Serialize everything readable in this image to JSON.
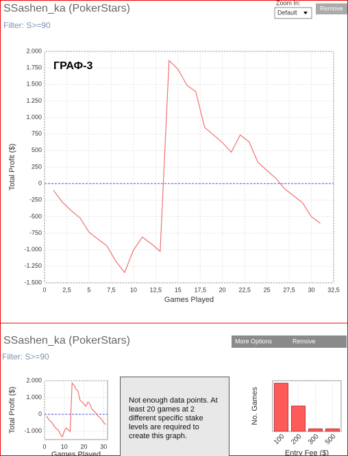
{
  "panel1": {
    "title": "SSashen_ka (PokerStars)",
    "filter": "Filter: S>=90",
    "zoom_label": "Zoom In:",
    "zoom_value": "Default",
    "remove": "Remove"
  },
  "panel2": {
    "title": "SSashen_ka (PokerStars)",
    "filter": "Filter: S>=90",
    "more_options": "More Options",
    "remove": "Remove",
    "message": "Not enough data points. At least 20 games at 2 different specific stake levels are required to create this graph."
  },
  "chart_data": [
    {
      "type": "line",
      "annotation": "ГРАФ-3",
      "xlabel": "Games Played",
      "ylabel": "Total Profit ($)",
      "x": [
        1,
        2,
        3,
        4,
        5,
        6,
        7,
        8,
        9,
        10,
        11,
        12,
        13,
        14,
        15,
        16,
        17,
        18,
        19,
        20,
        21,
        22,
        23,
        24,
        25,
        26,
        27,
        28,
        29,
        30,
        31
      ],
      "series": [
        {
          "color": "#f07070",
          "values": [
            -100,
            -280,
            -410,
            -520,
            -735,
            -840,
            -940,
            -1170,
            -1345,
            -1005,
            -810,
            -910,
            -1025,
            1860,
            1730,
            1490,
            1390,
            850,
            735,
            620,
            475,
            735,
            630,
            320,
            200,
            80,
            -80,
            -185,
            -290,
            -500,
            -600
          ]
        }
      ],
      "xlim": [
        0,
        32.5
      ],
      "ylim": [
        -1500,
        2000
      ],
      "xticks": [
        0,
        {
          "value": 2.5,
          "label": "2,5"
        },
        5,
        {
          "value": 7.5,
          "label": "7,5"
        },
        10,
        {
          "value": 12.5,
          "label": "12,5"
        },
        15,
        {
          "value": 17.5,
          "label": "17,5"
        },
        20,
        {
          "value": 22.5,
          "label": "22,5"
        },
        25,
        {
          "value": 27.5,
          "label": "27,5"
        },
        30,
        {
          "value": 32.5,
          "label": "32,5"
        }
      ],
      "yticks": [
        {
          "value": 2000,
          "label": "2.000"
        },
        {
          "value": 1750,
          "label": "1.750"
        },
        {
          "value": 1500,
          "label": "1.500"
        },
        {
          "value": 1250,
          "label": "1.250"
        },
        {
          "value": 1000,
          "label": "1.000"
        },
        750,
        500,
        250,
        0,
        -250,
        -500,
        -750,
        {
          "value": -1000,
          "label": "-1.000"
        },
        {
          "value": -1250,
          "label": "-1.250"
        },
        {
          "value": -1500,
          "label": "-1.500"
        }
      ],
      "grid": true,
      "zero_line": true
    },
    {
      "type": "line",
      "xlabel": "Games Played",
      "ylabel": "Total Profit ($)",
      "x": [
        1,
        2,
        3,
        4,
        5,
        6,
        7,
        8,
        9,
        10,
        11,
        12,
        13,
        14,
        15,
        16,
        17,
        18,
        19,
        20,
        21,
        22,
        23,
        24,
        25,
        26,
        27,
        28,
        29,
        30,
        31
      ],
      "series": [
        {
          "color": "#f07070",
          "values": [
            -100,
            -280,
            -410,
            -520,
            -735,
            -840,
            -940,
            -1170,
            -1345,
            -1005,
            -810,
            -910,
            -1025,
            1860,
            1730,
            1490,
            1390,
            850,
            735,
            620,
            475,
            735,
            630,
            320,
            200,
            80,
            -80,
            -185,
            -290,
            -500,
            -600
          ]
        }
      ],
      "xlim": [
        0,
        32
      ],
      "ylim": [
        -1500,
        2000
      ],
      "xticks": [
        0,
        10,
        20,
        30
      ],
      "yticks": [
        {
          "value": 2000,
          "label": "2.000"
        },
        {
          "value": 1000,
          "label": "1.000"
        },
        0,
        {
          "value": -1000,
          "label": "-1.000"
        }
      ],
      "grid": true,
      "zero_line": true
    },
    {
      "type": "bar",
      "xlabel": "Entry Fee ($)",
      "ylabel": "No. Games",
      "categories": [
        "100",
        "200",
        "300",
        "500"
      ],
      "values": [
        19,
        10,
        1,
        1
      ],
      "color": "#ff5a5a",
      "ylim": [
        0,
        20
      ],
      "grid": true
    }
  ]
}
